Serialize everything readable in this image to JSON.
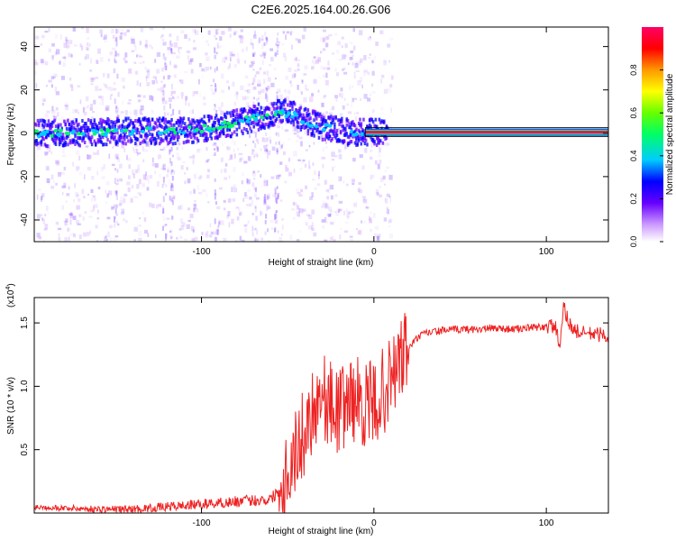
{
  "figure_title": "C2E6.2025.164.00.26.G06",
  "chart_data": [
    {
      "type": "heatmap",
      "title": "C2E6.2025.164.00.26.G06",
      "xlabel": "Height of straight line (km)",
      "ylabel": "Frequency (Hz)",
      "xlim": [
        -197,
        136
      ],
      "ylim": [
        -50,
        49
      ],
      "x_ticks": [
        -100,
        0,
        100
      ],
      "x_tick_labels": [
        "-100",
        "0",
        "100"
      ],
      "y_ticks": [
        -40,
        -20,
        0,
        20,
        40
      ],
      "y_tick_labels": [
        "-40",
        "-20",
        "0",
        "20",
        "40"
      ],
      "grid": false,
      "colorbar": {
        "label": "Normalized spectral amplitude",
        "range": [
          0,
          1
        ],
        "ticks": [
          0.0,
          0.2,
          0.4,
          0.6,
          0.8
        ],
        "tick_labels": [
          "0.0",
          "0.2",
          "0.4",
          "0.6",
          "0.8"
        ],
        "colormap": "rainbow",
        "colors": [
          "#ffffff",
          "#cc99ff",
          "#6600ff",
          "#0000ff",
          "#00ccff",
          "#00ff66",
          "#66ff00",
          "#ffff00",
          "#ff9900",
          "#ff0000",
          "#ff0066"
        ]
      },
      "ridge_line": {
        "x": [
          -197,
          -180,
          -160,
          -140,
          -120,
          -100,
          -90,
          -80,
          -70,
          -60,
          -55,
          -50,
          -45,
          -40,
          -35,
          -30,
          -25,
          -20,
          -15,
          -10,
          -5,
          0,
          5,
          50,
          100,
          136
        ],
        "y": [
          0,
          0,
          0.5,
          1,
          1,
          2,
          3,
          5,
          7,
          9,
          10,
          9,
          8,
          6,
          4,
          3,
          2,
          1,
          0.5,
          0.5,
          0.5,
          0.5,
          0.5,
          0.5,
          0.5,
          0.5
        ]
      }
    },
    {
      "type": "line",
      "xlabel": "Height of straight line (km)",
      "ylabel": "SNR (10 * v/v)",
      "y_scale_label": "(x10",
      "y_scale_exponent": "4",
      "y_scale_suffix": ")",
      "xlim": [
        -197,
        136
      ],
      "ylim": [
        0,
        1.7
      ],
      "x_ticks": [
        -100,
        0,
        100
      ],
      "x_tick_labels": [
        "-100",
        "0",
        "100"
      ],
      "y_ticks": [
        0.5,
        1.0,
        1.5
      ],
      "y_tick_labels": [
        "0.5",
        "1.0",
        "1.5"
      ],
      "grid": false,
      "series_color": "#ee2222",
      "series": [
        {
          "x": [
            -197,
            -180,
            -160,
            -140,
            -120,
            -100,
            -90,
            -80,
            -70,
            -60,
            -55,
            -50,
            -45,
            -40,
            -35,
            -30,
            -25,
            -20,
            -15,
            -10,
            -5,
            0,
            5,
            10,
            15,
            20,
            25,
            30,
            40,
            50,
            60,
            70,
            80,
            90,
            100,
            105,
            108,
            110,
            115,
            120,
            130,
            136
          ],
          "y": [
            0.05,
            0.04,
            0.03,
            0.03,
            0.05,
            0.07,
            0.08,
            0.09,
            0.1,
            0.11,
            0.18,
            0.35,
            0.5,
            0.65,
            0.85,
            0.95,
            0.85,
            0.8,
            0.9,
            0.9,
            0.85,
            0.85,
            0.95,
            1.05,
            1.2,
            1.3,
            1.38,
            1.42,
            1.44,
            1.45,
            1.45,
            1.46,
            1.45,
            1.46,
            1.47,
            1.48,
            1.3,
            1.62,
            1.45,
            1.42,
            1.41,
            1.4
          ]
        }
      ]
    }
  ]
}
